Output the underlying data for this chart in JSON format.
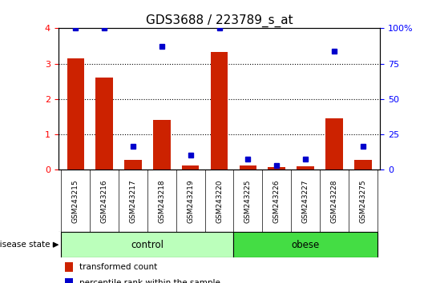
{
  "title": "GDS3688 / 223789_s_at",
  "samples": [
    "GSM243215",
    "GSM243216",
    "GSM243217",
    "GSM243218",
    "GSM243219",
    "GSM243220",
    "GSM243225",
    "GSM243226",
    "GSM243227",
    "GSM243228",
    "GSM243275"
  ],
  "red_values": [
    3.15,
    2.6,
    0.27,
    1.4,
    0.13,
    3.33,
    0.12,
    0.08,
    0.1,
    1.45,
    0.27
  ],
  "blue_values_pct": [
    100,
    100,
    16.75,
    87.5,
    10.5,
    100,
    7.5,
    3.0,
    7.5,
    83.75,
    16.75
  ],
  "ylim_left": [
    0,
    4
  ],
  "ylim_right": [
    0,
    100
  ],
  "yticks_left": [
    0,
    1,
    2,
    3,
    4
  ],
  "yticks_right": [
    0,
    25,
    50,
    75,
    100
  ],
  "yticklabels_right": [
    "0",
    "25",
    "50",
    "75",
    "100%"
  ],
  "n_control": 6,
  "n_obese": 5,
  "bar_color": "#CC2200",
  "marker_color": "#0000CC",
  "bg_color": "#C8C8C8",
  "control_color": "#BBFFBB",
  "obese_color": "#44DD44",
  "label_red": "transformed count",
  "label_blue": "percentile rank within the sample",
  "disease_state_label": "disease state",
  "title_fontsize": 11,
  "bar_width": 0.6
}
